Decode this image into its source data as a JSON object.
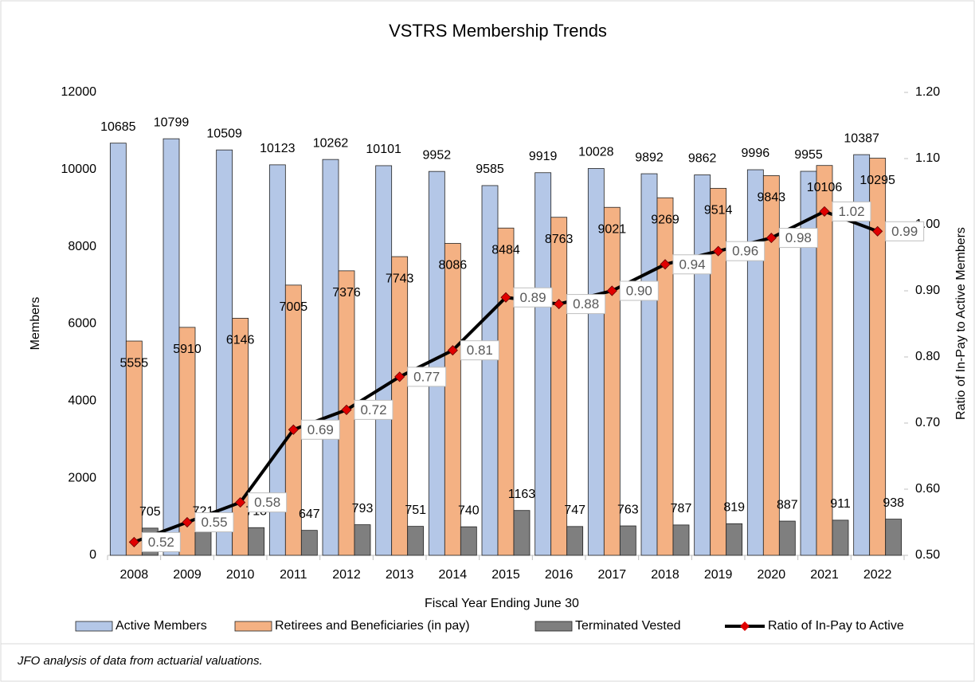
{
  "chart_data": {
    "type": "bar",
    "title": "VSTRS Membership Trends",
    "x_label": "Fiscal Year Ending June 30",
    "y_label": "Members",
    "y2_label": "Ratio of In-Pay to Active Members",
    "note": "JFO analysis of data from actuarial valuations.",
    "categories": [
      "2008",
      "2009",
      "2010",
      "2011",
      "2012",
      "2013",
      "2014",
      "2015",
      "2016",
      "2017",
      "2018",
      "2019",
      "2020",
      "2021",
      "2022"
    ],
    "series": [
      {
        "name": "Active Members",
        "color": "#b4c7e7",
        "values": [
          10685,
          10799,
          10509,
          10123,
          10262,
          10101,
          9952,
          9585,
          9919,
          10028,
          9892,
          9862,
          9996,
          9955,
          10387
        ]
      },
      {
        "name": "Retirees and Beneficiaries (in pay)",
        "color": "#f4b183",
        "values": [
          5555,
          5910,
          6146,
          7005,
          7376,
          7743,
          8086,
          8484,
          8763,
          9021,
          9269,
          9514,
          9843,
          10106,
          10295
        ]
      },
      {
        "name": "Terminated Vested",
        "color": "#7f7f7f",
        "values": [
          705,
          721,
          718,
          647,
          793,
          751,
          740,
          1163,
          747,
          763,
          787,
          819,
          887,
          911,
          938
        ]
      },
      {
        "name": "Ratio of In-Pay to Active",
        "color": "#000000",
        "marker_color": "#e00000",
        "type": "line",
        "axis": "y2",
        "values": [
          0.52,
          0.55,
          0.58,
          0.69,
          0.72,
          0.77,
          0.81,
          0.89,
          0.88,
          0.9,
          0.94,
          0.96,
          0.98,
          1.02,
          0.99
        ],
        "value_labels": [
          "0.52",
          "0.55",
          "0.58",
          "0.69",
          "0.72",
          "0.77",
          "0.81",
          "0.89",
          "0.88",
          "0.90",
          "0.94",
          "0.96",
          "0.98",
          "1.02",
          "0.99"
        ]
      }
    ],
    "ylim": [
      0,
      12000
    ],
    "yticks": [
      0,
      2000,
      4000,
      6000,
      8000,
      10000,
      12000
    ],
    "y2lim": [
      0.5,
      1.2
    ],
    "y2ticks": [
      {
        "value": 0.5,
        "label": "0.50"
      },
      {
        "value": 0.6,
        "label": "0.60"
      },
      {
        "value": 0.7,
        "label": "0.70"
      },
      {
        "value": 0.8,
        "label": "0.80"
      },
      {
        "value": 0.9,
        "label": "0.90"
      },
      {
        "value": 1.0,
        "label": "1.00"
      },
      {
        "value": 1.1,
        "label": "1.10"
      },
      {
        "value": 1.2,
        "label": "1.20"
      }
    ],
    "grid": false,
    "legend": "bottom"
  }
}
